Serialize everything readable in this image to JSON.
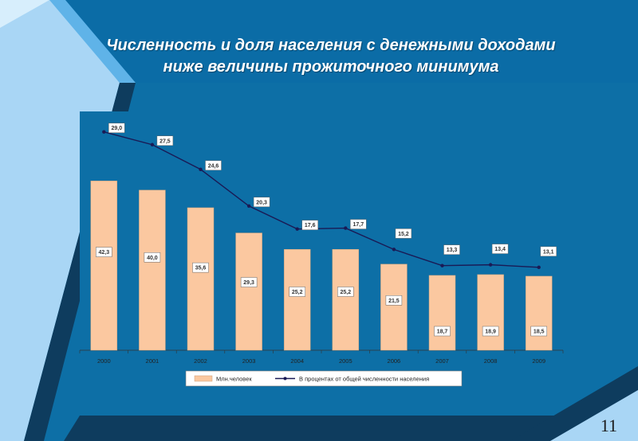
{
  "slide": {
    "title_line1": "Численность и доля населения с денежными доходами",
    "title_line2": "ниже величины прожиточного минимума",
    "page_number": "11"
  },
  "colors": {
    "background": "#0d6fa6",
    "panel_light": "#a9d6f5",
    "panel_dark": "#0e3c5e",
    "bar_fill": "#fbc8a0",
    "line": "#1a1a55"
  },
  "chart_data": {
    "type": "bar",
    "categories": [
      "2000",
      "2001",
      "2002",
      "2003",
      "2004",
      "2005",
      "2006",
      "2007",
      "2008",
      "2009"
    ],
    "series": [
      {
        "name": "Млн.человек",
        "type": "bar",
        "values": [
          42.3,
          40.0,
          35.6,
          29.3,
          25.2,
          25.2,
          21.5,
          18.7,
          18.9,
          18.5
        ],
        "labels": [
          "42,3",
          "40,0",
          "35,6",
          "29,3",
          "25,2",
          "25,2",
          "21,5",
          "18,7",
          "18,9",
          "18,5"
        ]
      },
      {
        "name": "В процентах от общей численности населения",
        "type": "line",
        "values": [
          29.0,
          27.5,
          24.6,
          20.3,
          17.6,
          17.7,
          15.2,
          13.3,
          13.4,
          13.1
        ],
        "labels": [
          "29,0",
          "27,5",
          "24,6",
          "20,3",
          "17,6",
          "17,7",
          "15,2",
          "13,3",
          "13,4",
          "13,1"
        ]
      }
    ],
    "legend_position": "bottom",
    "grid": false
  }
}
